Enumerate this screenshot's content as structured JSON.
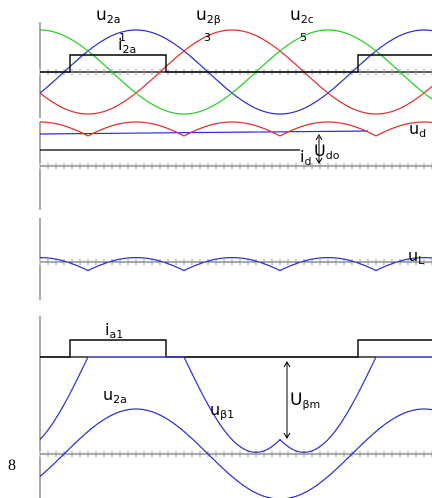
{
  "figure": {
    "page_number": "8",
    "colors": {
      "phase_a": "#2a2ad8",
      "phase_b": "#e02a2a",
      "phase_c": "#22cc22",
      "current": "#000000",
      "axis": "#555555",
      "tick": "#999999"
    },
    "panels": {
      "phase_voltages": {
        "label_u2a": {
          "main": "u",
          "sub": "2a"
        },
        "label_u2b": {
          "main": "u",
          "sub": "2β"
        },
        "label_u2c": {
          "main": "u",
          "sub": "2c"
        },
        "label_i2a": {
          "main": "i",
          "sub": "2a"
        },
        "segment_labels": [
          "1",
          "3",
          "5"
        ]
      },
      "rectified_output": {
        "label_ud": {
          "main": "u",
          "sub": "d"
        },
        "label_id": {
          "main": "i",
          "sub": "d"
        },
        "label_udo": {
          "main": "U",
          "sub": "do"
        }
      },
      "inductor_voltage": {
        "label_uL": {
          "main": "u",
          "sub": "L"
        }
      },
      "device_current_and_voltage": {
        "label_ia1": {
          "main": "i",
          "sub": "a1"
        },
        "label_u2a": {
          "main": "u",
          "sub": "2a"
        },
        "label_ub1": {
          "main": "u",
          "sub": "β1"
        },
        "label_ubm": {
          "main": "U",
          "sub": "βm"
        }
      }
    }
  }
}
